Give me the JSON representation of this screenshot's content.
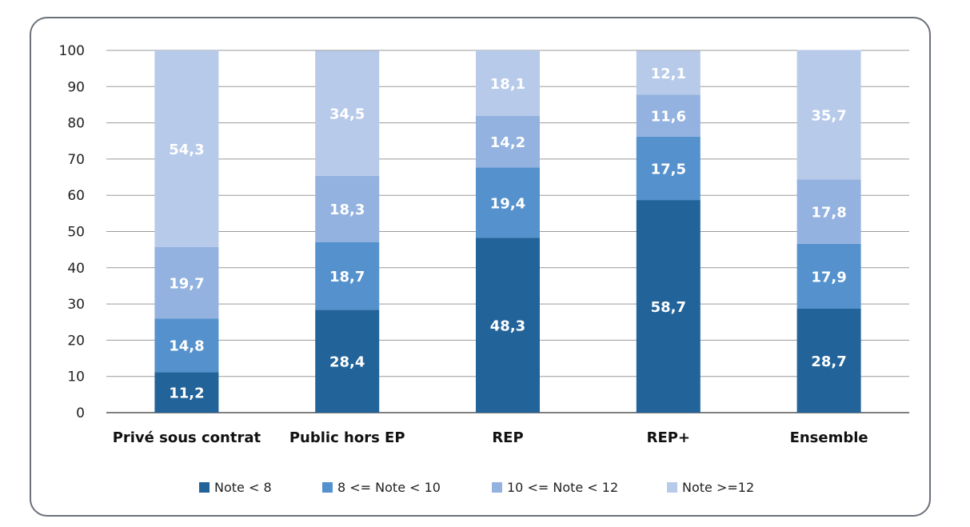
{
  "chart_data": {
    "type": "bar",
    "stacked": true,
    "categories": [
      "Privé sous contrat",
      "Public hors EP",
      "REP",
      "REP+",
      "Ensemble"
    ],
    "series": [
      {
        "name": "Note < 8",
        "color": "#22639a",
        "values": [
          11.2,
          28.4,
          48.3,
          58.7,
          28.7
        ],
        "labels": [
          "11,2",
          "28,4",
          "48,3",
          "58,7",
          "28,7"
        ]
      },
      {
        "name": "8 <= Note < 10",
        "color": "#5592cd",
        "values": [
          14.8,
          18.7,
          19.4,
          17.5,
          17.9
        ],
        "labels": [
          "14,8",
          "18,7",
          "19,4",
          "17,5",
          "17,9"
        ]
      },
      {
        "name": "10 <= Note < 12",
        "color": "#93b2df",
        "values": [
          19.7,
          18.3,
          14.2,
          11.6,
          17.8
        ],
        "labels": [
          "19,7",
          "18,3",
          "14,2",
          "11,6",
          "17,8"
        ]
      },
      {
        "name": "Note >=12",
        "color": "#b7caea",
        "values": [
          54.3,
          34.5,
          18.1,
          12.1,
          35.7
        ],
        "labels": [
          "54,3",
          "34,5",
          "18,1",
          "12,1",
          "35,7"
        ]
      }
    ],
    "yticks": [
      "0",
      "10",
      "20",
      "30",
      "40",
      "50",
      "60",
      "70",
      "80",
      "90",
      "100"
    ],
    "ylim": [
      0,
      100
    ],
    "grid": true,
    "legend_position": "bottom"
  }
}
